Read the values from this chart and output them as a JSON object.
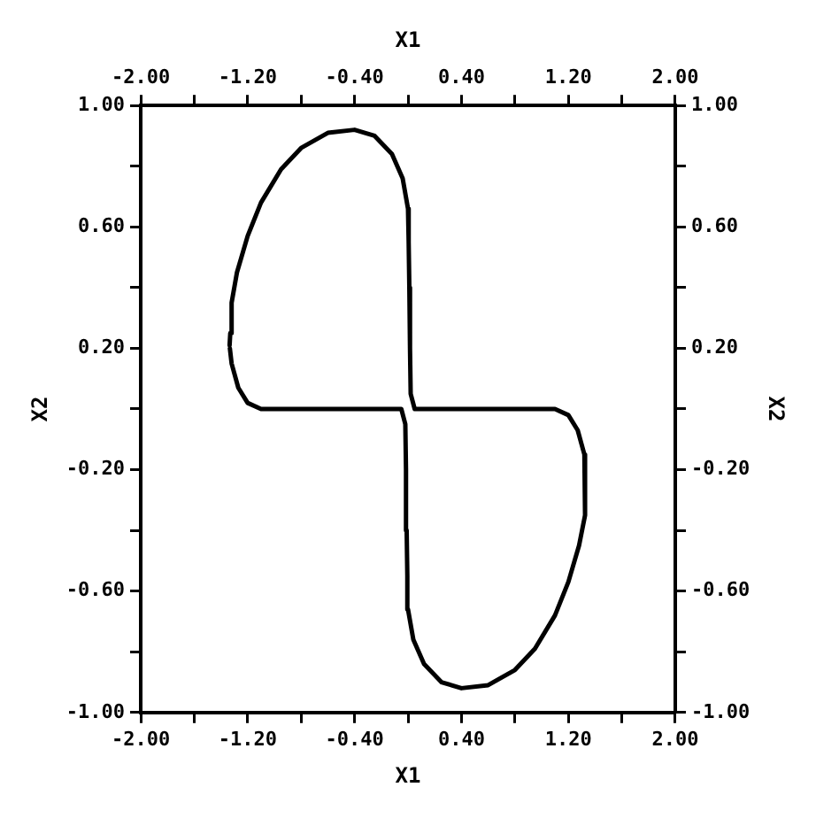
{
  "chart_data": {
    "type": "line",
    "xlabel": "X1",
    "x2label": "X1",
    "ylabel": "X2",
    "y2label": "X2",
    "xlim": [
      -2,
      2
    ],
    "x2lim": [
      -2,
      2
    ],
    "ylim": [
      -1,
      1
    ],
    "y2lim": [
      -1,
      1
    ],
    "xticks": [
      {
        "value": -2,
        "label": "-2.00"
      },
      {
        "value": -1.6,
        "label": null
      },
      {
        "value": -1.2,
        "label": "-1.20"
      },
      {
        "value": -0.8,
        "label": null
      },
      {
        "value": -0.4,
        "label": "-0.40"
      },
      {
        "value": 0,
        "label": null
      },
      {
        "value": 0.4,
        "label": "0.40"
      },
      {
        "value": 0.8,
        "label": null
      },
      {
        "value": 1.2,
        "label": "1.20"
      },
      {
        "value": 1.6,
        "label": null
      },
      {
        "value": 2,
        "label": "2.00"
      }
    ],
    "x2ticks": [
      {
        "value": -2,
        "label": "-2.00"
      },
      {
        "value": -1.6,
        "label": null
      },
      {
        "value": -1.2,
        "label": "-1.20"
      },
      {
        "value": -0.8,
        "label": null
      },
      {
        "value": -0.4,
        "label": "-0.40"
      },
      {
        "value": 0,
        "label": null
      },
      {
        "value": 0.4,
        "label": "0.40"
      },
      {
        "value": 0.8,
        "label": null
      },
      {
        "value": 1.2,
        "label": "1.20"
      },
      {
        "value": 1.6,
        "label": null
      },
      {
        "value": 2,
        "label": "2.00"
      }
    ],
    "yticks": [
      {
        "value": -1,
        "label": "-1.00"
      },
      {
        "value": -0.8,
        "label": null
      },
      {
        "value": -0.6,
        "label": "-0.60"
      },
      {
        "value": -0.4,
        "label": null
      },
      {
        "value": -0.2,
        "label": "-0.20"
      },
      {
        "value": 0,
        "label": null
      },
      {
        "value": 0.2,
        "label": "0.20"
      },
      {
        "value": 0.4,
        "label": null
      },
      {
        "value": 0.6,
        "label": "0.60"
      },
      {
        "value": 0.8,
        "label": null
      },
      {
        "value": 1,
        "label": "1.00"
      }
    ],
    "y2ticks": [
      {
        "value": -1,
        "label": "-1.00"
      },
      {
        "value": -0.8,
        "label": null
      },
      {
        "value": -0.6,
        "label": "-0.60"
      },
      {
        "value": -0.4,
        "label": null
      },
      {
        "value": -0.2,
        "label": "-0.20"
      },
      {
        "value": 0,
        "label": null
      },
      {
        "value": 0.2,
        "label": "0.20"
      },
      {
        "value": 0.4,
        "label": null
      },
      {
        "value": 0.6,
        "label": "0.60"
      },
      {
        "value": 0.8,
        "label": null
      },
      {
        "value": 1,
        "label": "1.00"
      }
    ],
    "grid": false,
    "legend": false,
    "marker": "none",
    "line_style": "solid",
    "series": [
      {
        "color": "#000000",
        "x": [
          -1.335,
          -1.33,
          -1.32,
          -1.28,
          -1.2,
          -1.1,
          -0.95,
          -0.8,
          -0.6,
          -0.4,
          -0.25,
          -0.12,
          -0.04,
          0.0,
          0.005,
          0.01,
          0.015,
          0.02,
          0.05,
          0.3,
          0.7,
          1.1,
          1.2,
          1.27,
          1.32,
          1.33,
          1.32,
          1.28,
          1.2,
          1.1,
          0.95,
          0.8,
          0.6,
          0.4,
          0.25,
          0.12,
          0.04,
          0.0,
          -0.005,
          -0.01,
          -0.015,
          -0.02,
          -0.05,
          -0.3,
          -0.7,
          -1.1,
          -1.2,
          -1.27,
          -1.32,
          -1.333
        ],
        "values": [
          0.21,
          0.25,
          0.35,
          0.45,
          0.57,
          0.68,
          0.79,
          0.86,
          0.91,
          0.92,
          0.9,
          0.84,
          0.76,
          0.66,
          0.55,
          0.4,
          0.2,
          0.05,
          0.0,
          0.0,
          0.0,
          0.0,
          -0.02,
          -0.07,
          -0.15,
          -0.25,
          -0.35,
          -0.45,
          -0.57,
          -0.68,
          -0.79,
          -0.86,
          -0.91,
          -0.92,
          -0.9,
          -0.84,
          -0.76,
          -0.66,
          -0.55,
          -0.4,
          -0.2,
          -0.05,
          0.0,
          0.0,
          0.0,
          0.0,
          0.02,
          0.07,
          0.15,
          0.2
        ]
      }
    ]
  }
}
